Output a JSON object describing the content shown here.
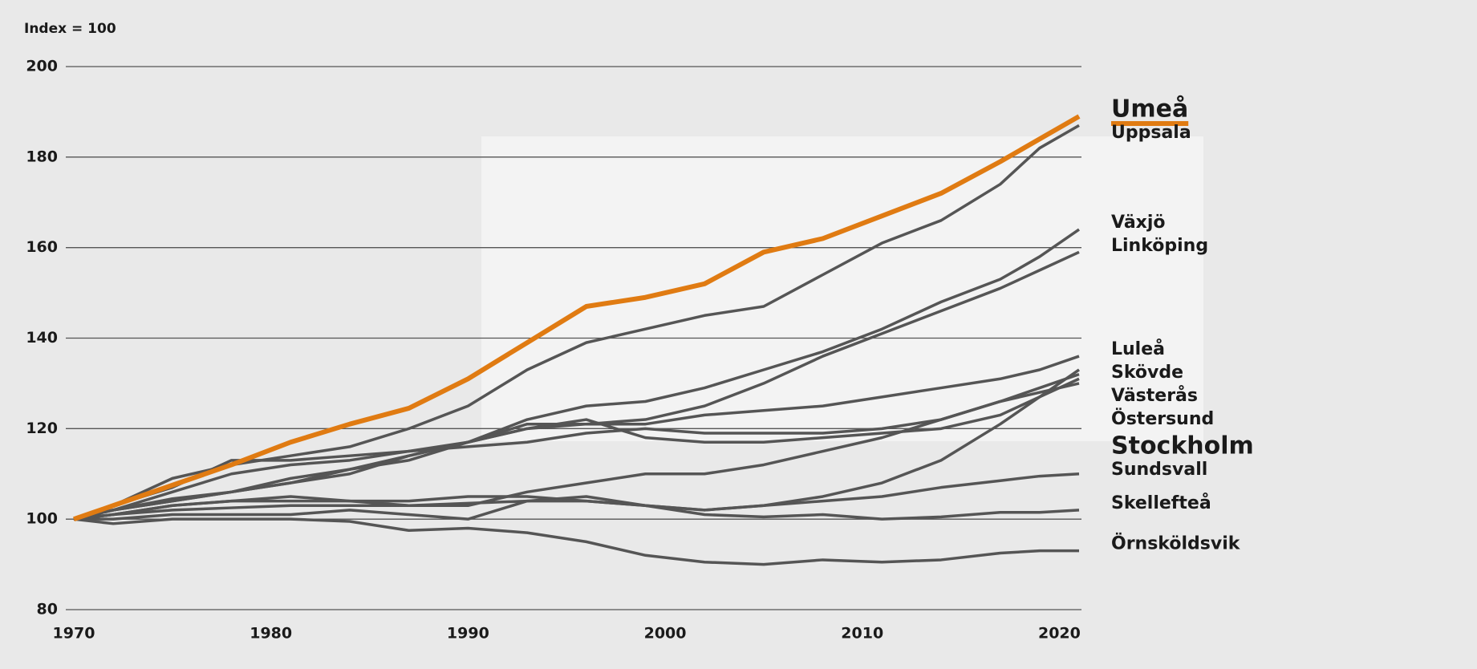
{
  "chart_data": {
    "type": "line",
    "y_label": "Index = 100",
    "x": [
      1970,
      1972,
      1975,
      1978,
      1981,
      1984,
      1987,
      1990,
      1993,
      1996,
      1999,
      2002,
      2005,
      2008,
      2011,
      2014,
      2017,
      2019,
      2021
    ],
    "xlim": [
      1970,
      2021
    ],
    "xticks": [
      1970,
      1980,
      1990,
      2000,
      2010,
      2020
    ],
    "ylim": [
      80,
      200
    ],
    "yticks": [
      80,
      100,
      120,
      140,
      160,
      180,
      200
    ],
    "grid": true,
    "series": [
      {
        "name": "Umeå",
        "color": "#e07b12",
        "values": [
          100,
          103,
          107.5,
          112,
          117,
          121,
          124.5,
          131,
          139,
          147,
          149,
          152,
          159,
          162,
          167,
          172,
          179,
          184,
          189
        ]
      },
      {
        "name": "Uppsala",
        "color": "#555555",
        "values": [
          100,
          103,
          109,
          112,
          114,
          116,
          120,
          125,
          133,
          139,
          142,
          145,
          147,
          154,
          161,
          166,
          174,
          182,
          187
        ]
      },
      {
        "name": "Växjö",
        "color": "#555555",
        "values": [
          100,
          102,
          104,
          106,
          108,
          110,
          114,
          117,
          122,
          125,
          126,
          129,
          133,
          137,
          142,
          148,
          153,
          158,
          164
        ]
      },
      {
        "name": "Linköping",
        "color": "#555555",
        "values": [
          100,
          102,
          104,
          106,
          108,
          111,
          113,
          117,
          120,
          121,
          122,
          125,
          130,
          136,
          141,
          146,
          151,
          155,
          159
        ]
      },
      {
        "name": "Luleå",
        "color": "#555555",
        "values": [
          100,
          102,
          104.5,
          106,
          109,
          111,
          114,
          117,
          121,
          121,
          121,
          123,
          124,
          125,
          127,
          129,
          131,
          133,
          136
        ]
      },
      {
        "name": "Skövde",
        "color": "#555555",
        "values": [
          100,
          101,
          103,
          104,
          104,
          104,
          104,
          105,
          105,
          104,
          103,
          102,
          103,
          105,
          108,
          113,
          121,
          127,
          133
        ]
      },
      {
        "name": "Västerås",
        "color": "#555555",
        "values": [
          100,
          102,
          106,
          110,
          112,
          113,
          115,
          117,
          120,
          122,
          118,
          117,
          117,
          118,
          119,
          120,
          123,
          127,
          131
        ]
      },
      {
        "name": "Östersund",
        "color": "#555555",
        "values": [
          100,
          103,
          107,
          113,
          113,
          114,
          115,
          116,
          117,
          119,
          120,
          119,
          119,
          119,
          120,
          122,
          126,
          129,
          132
        ]
      },
      {
        "name": "Stockholm",
        "color": "#555555",
        "values": [
          100,
          101,
          103,
          104,
          105,
          104,
          103,
          103,
          106,
          108,
          110,
          110,
          112,
          115,
          118,
          122,
          126,
          128,
          130
        ]
      },
      {
        "name": "Sundsvall",
        "color": "#555555",
        "values": [
          100,
          101,
          102,
          102.5,
          103,
          103,
          103,
          103.5,
          104,
          104,
          103,
          102,
          103,
          104,
          105,
          107,
          108.5,
          109.5,
          110
        ]
      },
      {
        "name": "Skellefteå",
        "color": "#555555",
        "values": [
          100,
          100,
          101,
          101,
          101,
          102,
          101,
          100,
          104,
          105,
          103,
          101,
          100.5,
          101,
          100,
          100.5,
          101.5,
          101.5,
          102
        ]
      },
      {
        "name": "Örnsköldsvik",
        "color": "#555555",
        "values": [
          100,
          99,
          100,
          100,
          100,
          99.5,
          97.5,
          98,
          97,
          95,
          92,
          90.5,
          90,
          91,
          90.5,
          91,
          92.5,
          93,
          93
        ]
      }
    ]
  }
}
